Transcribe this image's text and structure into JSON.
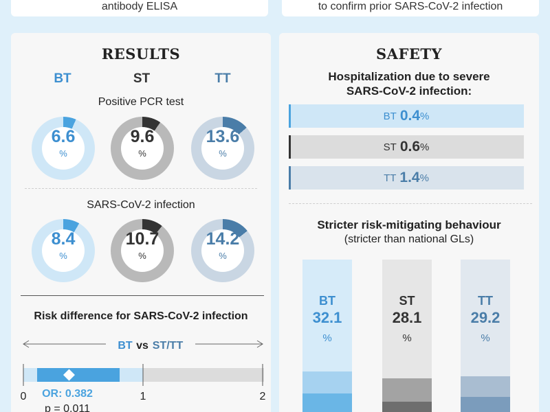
{
  "top": {
    "left_text": "antibody ELISA",
    "right_text": "to confirm prior SARS-CoV-2 infection"
  },
  "results": {
    "heading": "RESULTS",
    "groups": [
      "BT",
      "ST",
      "TT"
    ],
    "pcr": {
      "title": "Positive PCR test",
      "values": [
        {
          "group": "BT",
          "value": "6.6",
          "unit": "%",
          "fraction": 0.066
        },
        {
          "group": "ST",
          "value": "9.6",
          "unit": "%",
          "fraction": 0.096
        },
        {
          "group": "TT",
          "value": "13.6",
          "unit": "%",
          "fraction": 0.136
        }
      ]
    },
    "infection": {
      "title": "SARS-CoV-2 infection",
      "values": [
        {
          "group": "BT",
          "value": "8.4",
          "unit": "%",
          "fraction": 0.084
        },
        {
          "group": "ST",
          "value": "10.7",
          "unit": "%",
          "fraction": 0.107
        },
        {
          "group": "TT",
          "value": "14.2",
          "unit": "%",
          "fraction": 0.142
        }
      ]
    },
    "risk": {
      "title": "Risk difference for SARS-CoV-2 infection",
      "comparison_left": "BT",
      "comparison_mid": "vs",
      "comparison_right": "ST/TT",
      "or_label": "OR: 0.382",
      "p_label": "p = 0.011",
      "axis_ticks": [
        "0",
        "1",
        "2"
      ],
      "or_value": 0.382
    }
  },
  "safety": {
    "heading": "SAFETY",
    "hosp_title_line1": "Hospitalization due to severe",
    "hosp_title_line2": "SARS-CoV-2 infection:",
    "hosp": [
      {
        "group": "BT",
        "value": "0.4",
        "unit": "%"
      },
      {
        "group": "ST",
        "value": "0.6",
        "unit": "%"
      },
      {
        "group": "TT",
        "value": "1.4",
        "unit": "%"
      }
    ],
    "behaviour_title": "Stricter risk-mitigating behaviour",
    "behaviour_subtitle": "(stricter than national GLs)",
    "behaviour": [
      {
        "group": "BT",
        "value": "32.1",
        "unit": "%",
        "fraction": 0.321
      },
      {
        "group": "ST",
        "value": "28.1",
        "unit": "%",
        "fraction": 0.281
      },
      {
        "group": "TT",
        "value": "29.2",
        "unit": "%",
        "fraction": 0.292
      }
    ]
  },
  "colors": {
    "bt_main": "#4aa3df",
    "bt_light": "#cfe7f7",
    "st_main": "#333333",
    "st_light": "#b9b9b9",
    "tt_main": "#4a7da8",
    "tt_light": "#c9d6e3"
  }
}
